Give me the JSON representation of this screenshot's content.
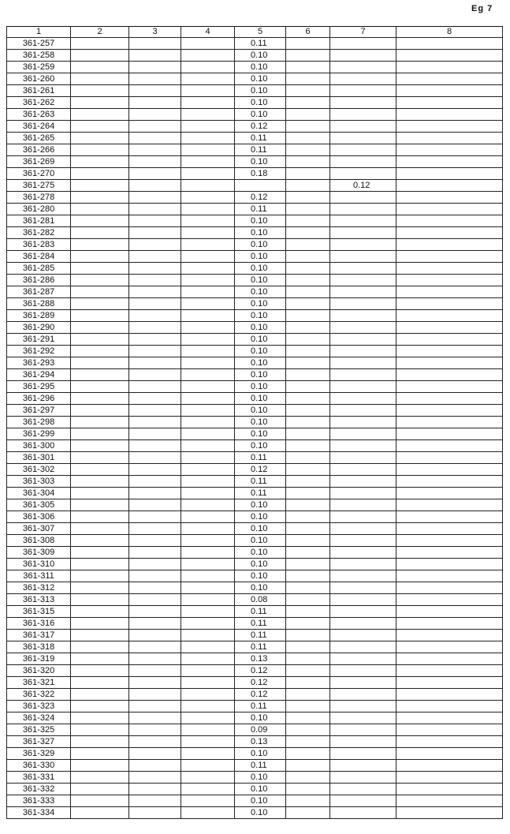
{
  "page_label": "Eg 7",
  "table": {
    "headers": [
      "1",
      "2",
      "3",
      "4",
      "5",
      "6",
      "7",
      "8"
    ],
    "rows": [
      {
        "id": "361-257",
        "c5": "0.11"
      },
      {
        "id": "361-258",
        "c5": "0.10"
      },
      {
        "id": "361-259",
        "c5": "0.10"
      },
      {
        "id": "361-260",
        "c5": "0.10"
      },
      {
        "id": "361-261",
        "c5": "0.10"
      },
      {
        "id": "361-262",
        "c5": "0.10"
      },
      {
        "id": "361-263",
        "c5": "0.10"
      },
      {
        "id": "361-264",
        "c5": "0.12"
      },
      {
        "id": "361-265",
        "c5": "0.11"
      },
      {
        "id": "361-266",
        "c5": "0.11"
      },
      {
        "id": "361-269",
        "c5": "0.10"
      },
      {
        "id": "361-270",
        "c5": "0.18"
      },
      {
        "id": "361-275",
        "c5": "",
        "c7": "0.12"
      },
      {
        "id": "361-278",
        "c5": "0.12"
      },
      {
        "id": "361-280",
        "c5": "0.11"
      },
      {
        "id": "361-281",
        "c5": "0.10"
      },
      {
        "id": "361-282",
        "c5": "0.10"
      },
      {
        "id": "361-283",
        "c5": "0.10"
      },
      {
        "id": "361-284",
        "c5": "0.10"
      },
      {
        "id": "361-285",
        "c5": "0.10"
      },
      {
        "id": "361-286",
        "c5": "0.10"
      },
      {
        "id": "361-287",
        "c5": "0.10"
      },
      {
        "id": "361-288",
        "c5": "0.10"
      },
      {
        "id": "361-289",
        "c5": "0.10"
      },
      {
        "id": "361-290",
        "c5": "0.10"
      },
      {
        "id": "361-291",
        "c5": "0.10"
      },
      {
        "id": "361-292",
        "c5": "0.10"
      },
      {
        "id": "361-293",
        "c5": "0.10"
      },
      {
        "id": "361-294",
        "c5": "0.10"
      },
      {
        "id": "361-295",
        "c5": "0.10"
      },
      {
        "id": "361-296",
        "c5": "0.10"
      },
      {
        "id": "361-297",
        "c5": "0.10"
      },
      {
        "id": "361-298",
        "c5": "0.10"
      },
      {
        "id": "361-299",
        "c5": "0.10"
      },
      {
        "id": "361-300",
        "c5": "0.10"
      },
      {
        "id": "361-301",
        "c5": "0.11"
      },
      {
        "id": "361-302",
        "c5": "0.12"
      },
      {
        "id": "361-303",
        "c5": "0.11"
      },
      {
        "id": "361-304",
        "c5": "0.11"
      },
      {
        "id": "361-305",
        "c5": "0.10"
      },
      {
        "id": "361-306",
        "c5": "0.10"
      },
      {
        "id": "361-307",
        "c5": "0.10"
      },
      {
        "id": "361-308",
        "c5": "0.10"
      },
      {
        "id": "361-309",
        "c5": "0.10"
      },
      {
        "id": "361-310",
        "c5": "0.10"
      },
      {
        "id": "361-311",
        "c5": "0.10"
      },
      {
        "id": "361-312",
        "c5": "0.10"
      },
      {
        "id": "361-313",
        "c5": "0.08"
      },
      {
        "id": "361-315",
        "c5": "0.11"
      },
      {
        "id": "361-316",
        "c5": "0.11"
      },
      {
        "id": "361-317",
        "c5": "0.11"
      },
      {
        "id": "361-318",
        "c5": "0.11"
      },
      {
        "id": "361-319",
        "c5": "0.13"
      },
      {
        "id": "361-320",
        "c5": "0.12"
      },
      {
        "id": "361-321",
        "c5": "0.12"
      },
      {
        "id": "361-322",
        "c5": "0.12"
      },
      {
        "id": "361-323",
        "c5": "0.11"
      },
      {
        "id": "361-324",
        "c5": "0.10"
      },
      {
        "id": "361-325",
        "c5": "0.09"
      },
      {
        "id": "361-327",
        "c5": "0.13"
      },
      {
        "id": "361-329",
        "c5": "0.10"
      },
      {
        "id": "361-330",
        "c5": "0.11"
      },
      {
        "id": "361-331",
        "c5": "0.10"
      },
      {
        "id": "361-332",
        "c5": "0.10"
      },
      {
        "id": "361-333",
        "c5": "0.10"
      },
      {
        "id": "361-334",
        "c5": "0.10"
      }
    ]
  }
}
